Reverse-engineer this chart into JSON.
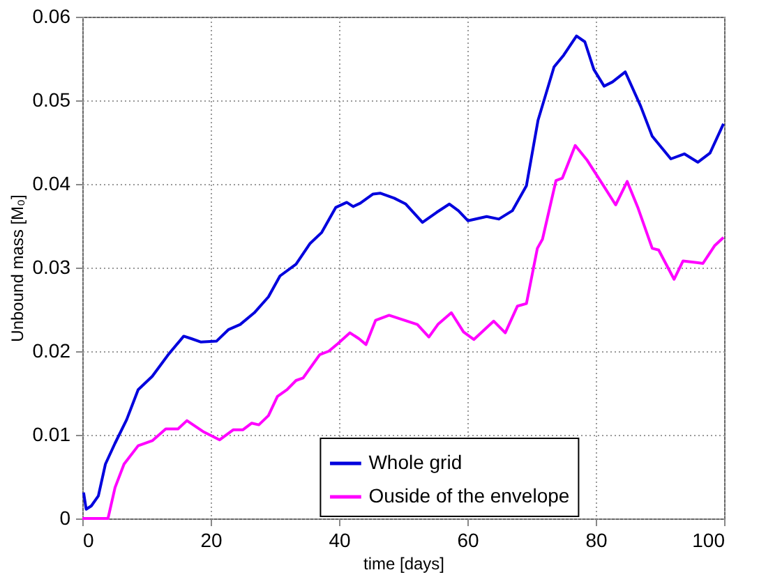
{
  "chart_data": {
    "type": "line",
    "xlabel": "time [days]",
    "ylabel": "Unbound mass [M₀]",
    "xlim": [
      0,
      100
    ],
    "xticks": [
      0,
      20,
      40,
      60,
      80,
      100
    ],
    "ylim": [
      0,
      0.06
    ],
    "yticks": [
      0,
      0.01,
      0.02,
      0.03,
      0.04,
      0.05,
      0.06
    ],
    "grid": true,
    "legend": "bottom",
    "line_style": "solid",
    "marker": "none",
    "series": [
      {
        "name": "Whole grid",
        "color": "#0000dd",
        "x": [
          0.2,
          0.6,
          1.4,
          2.5,
          3.6,
          5.1,
          6.9,
          8.7,
          10.9,
          13.4,
          15.8,
          17,
          18.5,
          20.9,
          22.8,
          24.6,
          26.8,
          29,
          30.8,
          33.3,
          35.5,
          37.3,
          39.5,
          41.2,
          42.2,
          43.3,
          45.3,
          46.4,
          48.6,
          50.4,
          53,
          55.2,
          57.2,
          58.6,
          60.1,
          63,
          64.9,
          67,
          69.2,
          71,
          73.5,
          75,
          77,
          78.3,
          79.7,
          81.3,
          82.6,
          84.6,
          87,
          88.8,
          91.7,
          93.8,
          95.9,
          97.8,
          99.9
        ],
        "values": [
          0.0031,
          0.0011,
          0.0015,
          0.0027,
          0.0065,
          0.009,
          0.0118,
          0.0154,
          0.017,
          0.0196,
          0.0218,
          0.0215,
          0.0211,
          0.0212,
          0.0226,
          0.0232,
          0.0246,
          0.0265,
          0.029,
          0.0304,
          0.0329,
          0.0342,
          0.0372,
          0.0378,
          0.0373,
          0.0377,
          0.0388,
          0.0389,
          0.0383,
          0.0376,
          0.0354,
          0.0366,
          0.0376,
          0.0368,
          0.0356,
          0.0361,
          0.0358,
          0.0368,
          0.0398,
          0.0476,
          0.054,
          0.0554,
          0.0577,
          0.057,
          0.0537,
          0.0517,
          0.0522,
          0.0534,
          0.0493,
          0.0457,
          0.043,
          0.0436,
          0.0426,
          0.0437,
          0.0472
        ]
      },
      {
        "name": "Ouside of the envelope",
        "color": "#ff00ff",
        "x": [
          0,
          4,
          5.1,
          6.5,
          8.7,
          10.9,
          13,
          14.9,
          16.3,
          18.8,
          21.4,
          23.5,
          25,
          26.4,
          27.5,
          29,
          30.4,
          31.9,
          33.3,
          34.4,
          37,
          38.4,
          39.8,
          41.7,
          43.1,
          44.2,
          45.7,
          47.8,
          52.2,
          54,
          55.4,
          57.5,
          59.4,
          61,
          64.1,
          65.9,
          67.8,
          69.2,
          70.9,
          71.7,
          73.8,
          74.8,
          76.8,
          78.6,
          81.2,
          83.1,
          84.9,
          86.6,
          88.8,
          89.8,
          92.2,
          93.6,
          95.7,
          96.7,
          98.5,
          99.9
        ],
        "values": [
          0,
          0,
          0.0037,
          0.0065,
          0.0087,
          0.0093,
          0.0107,
          0.0107,
          0.0117,
          0.0104,
          0.0094,
          0.0106,
          0.0106,
          0.0114,
          0.0112,
          0.0123,
          0.0146,
          0.0154,
          0.0165,
          0.0168,
          0.0196,
          0.02,
          0.0209,
          0.0222,
          0.0215,
          0.0208,
          0.0237,
          0.0243,
          0.0232,
          0.0217,
          0.0232,
          0.0246,
          0.0223,
          0.0214,
          0.0236,
          0.0222,
          0.0254,
          0.0257,
          0.0323,
          0.0334,
          0.0404,
          0.0407,
          0.0446,
          0.0429,
          0.0398,
          0.0375,
          0.0403,
          0.0371,
          0.0323,
          0.0321,
          0.0286,
          0.0308,
          0.0306,
          0.0305,
          0.0326,
          0.0336
        ]
      }
    ]
  }
}
